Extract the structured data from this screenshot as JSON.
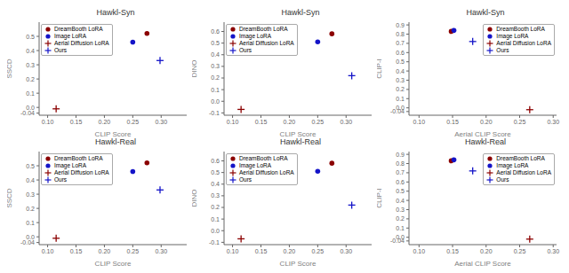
{
  "chart_data": [
    {
      "type": "scatter",
      "title": "Hawkl-Syn",
      "xlabel": "CLIP Score",
      "ylabel": "SSCD",
      "series": [
        {
          "name": "DreamBooth LoRA",
          "color": "#8B0000",
          "marker": "circle",
          "x": [
            0.275
          ],
          "values": [
            0.52
          ]
        },
        {
          "name": "Image LoRA",
          "color": "#1414C8",
          "marker": "circle",
          "x": [
            0.25
          ],
          "values": [
            0.46
          ]
        },
        {
          "name": "Aerial Diffusion LoRA",
          "color": "#8B0000",
          "marker": "plus",
          "x": [
            0.115
          ],
          "values": [
            -0.01
          ]
        },
        {
          "name": "Ours",
          "color": "#1414C8",
          "marker": "plus",
          "x": [
            0.298
          ],
          "values": [
            0.33
          ]
        }
      ],
      "xlim": [
        0.085,
        0.345
      ],
      "ylim": [
        -0.055,
        0.6
      ],
      "xticks": [
        {
          "value": 0.1,
          "label": "0.10"
        },
        {
          "value": 0.15,
          "label": "0.15"
        },
        {
          "value": 0.2,
          "label": "0.20"
        },
        {
          "value": 0.25,
          "label": "0.25"
        },
        {
          "value": 0.3,
          "label": "0.30"
        }
      ],
      "yticks": [
        -0.04,
        {
          "value": 0,
          "label": "0.0"
        },
        0.1,
        0.2,
        0.3,
        0.4,
        0.5
      ],
      "legend": "upper left"
    },
    {
      "type": "scatter",
      "title": "Hawkl-Syn",
      "xlabel": "CLIP Score",
      "ylabel": "DINO",
      "series": [
        {
          "name": "DreamBooth LoRA",
          "color": "#8B0000",
          "marker": "circle",
          "x": [
            0.275
          ],
          "values": [
            0.58
          ]
        },
        {
          "name": "Image LoRA",
          "color": "#1414C8",
          "marker": "circle",
          "x": [
            0.25
          ],
          "values": [
            0.51
          ]
        },
        {
          "name": "Aerial Diffusion LoRA",
          "color": "#8B0000",
          "marker": "plus",
          "x": [
            0.115
          ],
          "values": [
            -0.07
          ]
        },
        {
          "name": "Ours",
          "color": "#1414C8",
          "marker": "plus",
          "x": [
            0.31
          ],
          "values": [
            0.22
          ]
        }
      ],
      "xlim": [
        0.085,
        0.345
      ],
      "ylim": [
        -0.12,
        0.68
      ],
      "xticks": [
        {
          "value": 0.1,
          "label": "0.10"
        },
        {
          "value": 0.15,
          "label": "0.15"
        },
        {
          "value": 0.2,
          "label": "0.20"
        },
        {
          "value": 0.25,
          "label": "0.25"
        },
        {
          "value": 0.3,
          "label": "0.30"
        }
      ],
      "yticks": [
        -0.1,
        {
          "value": 0,
          "label": "0.0"
        },
        0.1,
        0.2,
        0.3,
        0.4,
        0.5,
        0.6
      ],
      "legend": "upper left"
    },
    {
      "type": "scatter",
      "title": "Hawkl-Syn",
      "xlabel": "Aerial CLIP Score",
      "ylabel": "CLIP-I",
      "series": [
        {
          "name": "DreamBooth LoRA",
          "color": "#8B0000",
          "marker": "circle",
          "x": [
            0.148
          ],
          "values": [
            0.83
          ]
        },
        {
          "name": "Image LoRA",
          "color": "#1414C8",
          "marker": "circle",
          "x": [
            0.152
          ],
          "values": [
            0.84
          ]
        },
        {
          "name": "Aerial Diffusion LoRA",
          "color": "#8B0000",
          "marker": "plus",
          "x": [
            0.265
          ],
          "values": [
            -0.02
          ]
        },
        {
          "name": "Ours",
          "color": "#1414C8",
          "marker": "plus",
          "x": [
            0.18
          ],
          "values": [
            0.72
          ]
        }
      ],
      "xlim": [
        0.085,
        0.305
      ],
      "ylim": [
        -0.08,
        0.93
      ],
      "xticks": [
        {
          "value": 0.1,
          "label": "0.10"
        },
        {
          "value": 0.15,
          "label": "0.15"
        },
        {
          "value": 0.2,
          "label": "0.20"
        },
        {
          "value": 0.25,
          "label": "0.25"
        },
        {
          "value": 0.3,
          "label": "0.30"
        }
      ],
      "yticks": [
        -0.04,
        {
          "value": 0,
          "label": "0.0"
        },
        0.1,
        0.2,
        0.3,
        0.4,
        0.5,
        0.6,
        0.7,
        0.8,
        0.9
      ],
      "legend": "upper right"
    },
    {
      "type": "scatter",
      "title": "Hawkl-Real",
      "xlabel": "CLIP Score",
      "ylabel": "SSCD",
      "series": [
        {
          "name": "DreamBooth LoRA",
          "color": "#8B0000",
          "marker": "circle",
          "x": [
            0.275
          ],
          "values": [
            0.52
          ]
        },
        {
          "name": "Image LoRA",
          "color": "#1414C8",
          "marker": "circle",
          "x": [
            0.25
          ],
          "values": [
            0.46
          ]
        },
        {
          "name": "Aerial Diffusion LoRA",
          "color": "#8B0000",
          "marker": "plus",
          "x": [
            0.115
          ],
          "values": [
            -0.01
          ]
        },
        {
          "name": "Ours",
          "color": "#1414C8",
          "marker": "plus",
          "x": [
            0.298
          ],
          "values": [
            0.33
          ]
        }
      ],
      "xlim": [
        0.085,
        0.345
      ],
      "ylim": [
        -0.055,
        0.6
      ],
      "xticks": [
        {
          "value": 0.1,
          "label": "0.10"
        },
        {
          "value": 0.15,
          "label": "0.15"
        },
        {
          "value": 0.2,
          "label": "0.20"
        },
        {
          "value": 0.25,
          "label": "0.25"
        },
        {
          "value": 0.3,
          "label": "0.30"
        }
      ],
      "yticks": [
        -0.04,
        {
          "value": 0,
          "label": "0.0"
        },
        0.1,
        0.2,
        0.3,
        0.4,
        0.5
      ],
      "legend": "upper left"
    },
    {
      "type": "scatter",
      "title": "Hawkl-Real",
      "xlabel": "CLIP Score",
      "ylabel": "DINO",
      "series": [
        {
          "name": "DreamBooth LoRA",
          "color": "#8B0000",
          "marker": "circle",
          "x": [
            0.275
          ],
          "values": [
            0.58
          ]
        },
        {
          "name": "Image LoRA",
          "color": "#1414C8",
          "marker": "circle",
          "x": [
            0.25
          ],
          "values": [
            0.51
          ]
        },
        {
          "name": "Aerial Diffusion LoRA",
          "color": "#8B0000",
          "marker": "plus",
          "x": [
            0.115
          ],
          "values": [
            -0.07
          ]
        },
        {
          "name": "Ours",
          "color": "#1414C8",
          "marker": "plus",
          "x": [
            0.31
          ],
          "values": [
            0.22
          ]
        }
      ],
      "xlim": [
        0.085,
        0.345
      ],
      "ylim": [
        -0.12,
        0.68
      ],
      "xticks": [
        {
          "value": 0.1,
          "label": "0.10"
        },
        {
          "value": 0.15,
          "label": "0.15"
        },
        {
          "value": 0.2,
          "label": "0.20"
        },
        {
          "value": 0.25,
          "label": "0.25"
        },
        {
          "value": 0.3,
          "label": "0.30"
        }
      ],
      "yticks": [
        -0.1,
        {
          "value": 0,
          "label": "0.0"
        },
        0.1,
        0.2,
        0.3,
        0.4,
        0.5,
        0.6
      ],
      "legend": "upper left"
    },
    {
      "type": "scatter",
      "title": "Hawkl-Real",
      "xlabel": "Aerial CLIP Score",
      "ylabel": "CLIP-I",
      "series": [
        {
          "name": "DreamBooth LoRA",
          "color": "#8B0000",
          "marker": "circle",
          "x": [
            0.148
          ],
          "values": [
            0.83
          ]
        },
        {
          "name": "Image LoRA",
          "color": "#1414C8",
          "marker": "circle",
          "x": [
            0.152
          ],
          "values": [
            0.84
          ]
        },
        {
          "name": "Aerial Diffusion LoRA",
          "color": "#8B0000",
          "marker": "plus",
          "x": [
            0.265
          ],
          "values": [
            -0.02
          ]
        },
        {
          "name": "Ours",
          "color": "#1414C8",
          "marker": "plus",
          "x": [
            0.18
          ],
          "values": [
            0.72
          ]
        }
      ],
      "xlim": [
        0.085,
        0.305
      ],
      "ylim": [
        -0.08,
        0.93
      ],
      "xticks": [
        {
          "value": 0.1,
          "label": "0.10"
        },
        {
          "value": 0.15,
          "label": "0.15"
        },
        {
          "value": 0.2,
          "label": "0.20"
        },
        {
          "value": 0.25,
          "label": "0.25"
        },
        {
          "value": 0.3,
          "label": "0.30"
        }
      ],
      "yticks": [
        -0.04,
        {
          "value": 0,
          "label": "0.0"
        },
        0.1,
        0.2,
        0.3,
        0.4,
        0.5,
        0.6,
        0.7,
        0.8,
        0.9
      ],
      "legend": "upper right"
    }
  ]
}
